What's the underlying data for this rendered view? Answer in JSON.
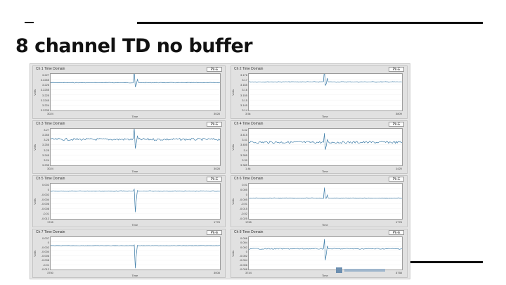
{
  "slide": {
    "title": "8 channel TD no buffer"
  },
  "panels": [
    {
      "title": "Ch 1 Time Domain",
      "button": "Pk-E",
      "y_axis": "Volts",
      "x_axis": "Time",
      "x_start": "3024",
      "x_end": "3028",
      "y_ticks": [
        "3.227",
        "3.2265",
        "3.226",
        "3.2255",
        "3.225",
        "3.2245",
        "3.224",
        "3.2235"
      ],
      "trace": {
        "baseline": 0.24,
        "noise": 0.008,
        "spike_at": 0.5,
        "spike_up": 0.3,
        "spike_down": 0.12
      }
    },
    {
      "title": "Ch 2 Time Domain",
      "button": "Pk-E",
      "y_axis": "Volts",
      "x_axis": "Time",
      "x_start": "3.5k",
      "x_end": "3809",
      "y_ticks": [
        "3.176",
        "3.17",
        "3.165",
        "3.16",
        "3.155",
        "3.15",
        "3.145",
        "3.14"
      ],
      "trace": {
        "baseline": 0.22,
        "noise": 0.012,
        "spike_at": 0.5,
        "spike_up": 0.35,
        "spike_down": 0.1
      }
    },
    {
      "title": "Ch 3 Time Domain",
      "button": "Pk-E",
      "y_axis": "Volts",
      "x_axis": "Time",
      "x_start": "3024",
      "x_end": "3028",
      "y_ticks": [
        "3.27",
        "3.265",
        "3.26",
        "3.255",
        "3.25",
        "3.245",
        "3.24",
        "3.235"
      ],
      "trace": {
        "baseline": 0.29,
        "noise": 0.03,
        "spike_at": 0.5,
        "spike_up": 0.3,
        "spike_down": 0.25
      }
    },
    {
      "title": "Ch 4 Time Domain",
      "button": "Pk-E",
      "y_axis": "Volts",
      "x_axis": "Time",
      "x_start": "1.4k",
      "x_end": "1420",
      "y_ticks": [
        "3.42",
        "3.415",
        "3.41",
        "3.405",
        "3.4",
        "3.395",
        "3.39",
        "3.385"
      ],
      "trace": {
        "baseline": 0.37,
        "noise": 0.03,
        "spike_at": 0.5,
        "spike_up": 0.25,
        "spike_down": 0.2
      }
    },
    {
      "title": "Ch 5 Time Domain",
      "button": "Pk-E",
      "y_axis": "Volts",
      "x_axis": "Time",
      "x_start": "1745",
      "x_end": "1778",
      "y_ticks": [
        "0.002",
        "0",
        "-0.002",
        "-0.004",
        "-0.006",
        "-0.008",
        "-0.01",
        "-0.012"
      ],
      "trace": {
        "baseline": 0.21,
        "noise": 0.01,
        "spike_at": 0.5,
        "spike_up": 0.05,
        "spike_down": 0.6
      }
    },
    {
      "title": "Ch 6 Time Domain",
      "button": "Pk-E",
      "y_axis": "Volts",
      "x_axis": "Time",
      "x_start": "1765",
      "x_end": "1778",
      "y_ticks": [
        "0.01",
        "0.005",
        "0",
        "-0.005",
        "-0.01",
        "-0.015",
        "-0.02",
        "-0.025"
      ],
      "trace": {
        "baseline": 0.41,
        "noise": 0.008,
        "spike_at": 0.5,
        "spike_up": 0.3,
        "spike_down": 0.0
      }
    },
    {
      "title": "Ch 7 Time Domain",
      "button": "Pk-E",
      "y_axis": "Volts",
      "x_axis": "Time",
      "x_start": "3750",
      "x_end": "3008",
      "y_ticks": [
        "0.007",
        "0",
        "-0.002",
        "-0.004",
        "-0.006",
        "-0.008",
        "-0.01",
        "-0.012"
      ],
      "trace": {
        "baseline": 0.26,
        "noise": 0.006,
        "spike_at": 0.5,
        "spike_up": 0.02,
        "spike_down": 0.7
      }
    },
    {
      "title": "Ch 8 Time Domain",
      "button": "Pk-E",
      "y_axis": "Volts",
      "x_axis": "Time",
      "x_start": "3744",
      "x_end": "3758",
      "y_ticks": [
        "0.006",
        "0.004",
        "0.002",
        "0",
        "-0.002",
        "-0.004",
        "-0.006",
        "-0.008"
      ],
      "trace": {
        "baseline": 0.36,
        "noise": 0.015,
        "spike_at": 0.5,
        "spike_up": 0.3,
        "spike_down": 0.35
      }
    }
  ],
  "colors": {
    "trace": "#3a7aa6",
    "accent_lines": "#111111"
  },
  "icons": {
    "logo": "national-instruments-logo"
  }
}
